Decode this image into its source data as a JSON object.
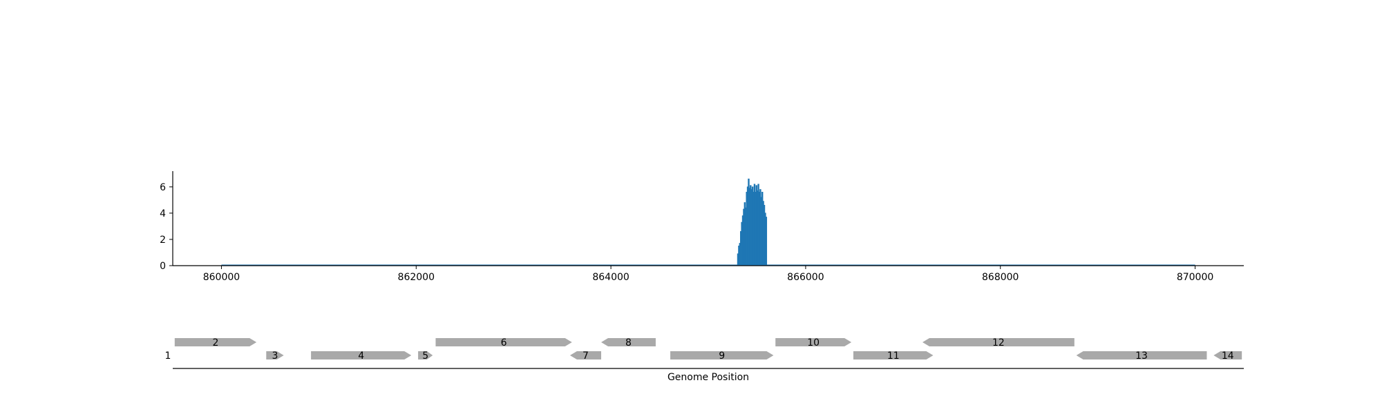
{
  "chart_data": {
    "type": "area",
    "title": "",
    "xlabel": "",
    "ylabel": "",
    "xlim": [
      859500,
      870500
    ],
    "ylim": [
      0,
      7.2
    ],
    "x_ticks": [
      860000,
      862000,
      864000,
      866000,
      868000,
      870000
    ],
    "x_tick_labels": [
      "860000",
      "862000",
      "864000",
      "866000",
      "868000",
      "870000"
    ],
    "y_ticks": [
      0,
      2,
      4,
      6
    ],
    "y_tick_labels": [
      "0",
      "2",
      "4",
      "6"
    ],
    "grid": false,
    "baseline": {
      "x": [
        860000,
        870000
      ],
      "y": 0
    },
    "series": [
      {
        "color": "#1f77b4",
        "x": [
          865300,
          865310,
          865320,
          865330,
          865340,
          865350,
          865360,
          865370,
          865380,
          865390,
          865400,
          865410,
          865420,
          865430,
          865440,
          865450,
          865460,
          865470,
          865480,
          865490,
          865500,
          865510,
          865520,
          865530,
          865540,
          865550,
          865560,
          865570,
          865580,
          865590,
          865600
        ],
        "y": [
          0.9,
          1.5,
          1.7,
          2.6,
          3.3,
          3.8,
          4.3,
          4.8,
          4.4,
          5.6,
          6.0,
          6.6,
          5.9,
          6.1,
          5.8,
          6.0,
          5.6,
          6.2,
          5.6,
          6.1,
          5.7,
          6.2,
          5.6,
          5.8,
          5.2,
          5.6,
          4.9,
          4.6,
          4.0,
          3.7,
          0
        ]
      }
    ]
  },
  "gene_track": {
    "xlabel": "Genome Position",
    "feature_color": "#a9a9a9",
    "features": [
      {
        "label": "1",
        "start": 859420,
        "end": 859480,
        "strand": "+",
        "row": 1
      },
      {
        "label": "2",
        "start": 859520,
        "end": 860360,
        "strand": "+",
        "row": 0
      },
      {
        "label": "3",
        "start": 860460,
        "end": 860640,
        "strand": "+",
        "row": 1
      },
      {
        "label": "4",
        "start": 860920,
        "end": 861950,
        "strand": "+",
        "row": 1
      },
      {
        "label": "5",
        "start": 862020,
        "end": 862170,
        "strand": "+",
        "row": 1
      },
      {
        "label": "6",
        "start": 862200,
        "end": 863600,
        "strand": "+",
        "row": 0
      },
      {
        "label": "7",
        "start": 863580,
        "end": 863900,
        "strand": "-",
        "row": 1
      },
      {
        "label": "8",
        "start": 863900,
        "end": 864460,
        "strand": "-",
        "row": 0
      },
      {
        "label": "9",
        "start": 864610,
        "end": 865670,
        "strand": "+",
        "row": 1
      },
      {
        "label": "10",
        "start": 865690,
        "end": 866470,
        "strand": "+",
        "row": 0
      },
      {
        "label": "11",
        "start": 866490,
        "end": 867310,
        "strand": "+",
        "row": 1
      },
      {
        "label": "12",
        "start": 867200,
        "end": 868760,
        "strand": "-",
        "row": 0
      },
      {
        "label": "13",
        "start": 868780,
        "end": 870120,
        "strand": "-",
        "row": 1
      },
      {
        "label": "14",
        "start": 870190,
        "end": 870480,
        "strand": "-",
        "row": 1
      }
    ]
  }
}
